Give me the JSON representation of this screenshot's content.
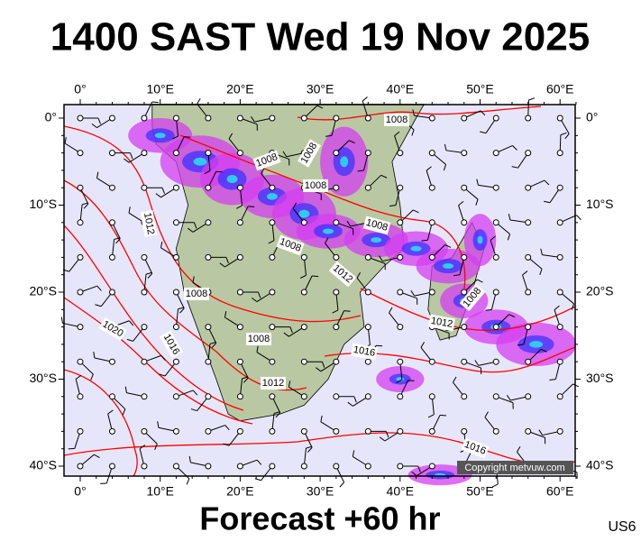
{
  "header": {
    "title": "1400 SAST Wed 19 Nov 2025"
  },
  "map": {
    "lon_labels": [
      "0°",
      "10°E",
      "20°E",
      "30°E",
      "40°E",
      "50°E",
      "60°E"
    ],
    "lat_labels": [
      "0°",
      "10°S",
      "20°S",
      "30°S",
      "40°S"
    ],
    "isobar_labels": [
      "1008",
      "1008",
      "1008",
      "1008",
      "1008",
      "1008",
      "1008",
      "1008",
      "1008",
      "1012",
      "1012",
      "1012",
      "1012",
      "1016",
      "1016",
      "1016",
      "1020"
    ],
    "copyright": "Copyright metvuw.com"
  },
  "footer": {
    "caption": "Forecast +60 hr",
    "code": "US6"
  }
}
